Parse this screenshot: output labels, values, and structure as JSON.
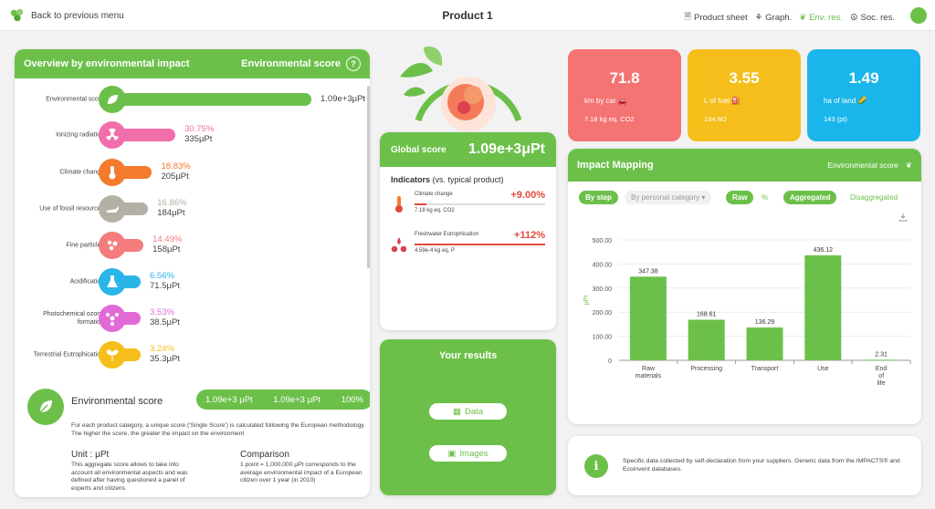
{
  "header": {
    "back_label": "Back to previous menu",
    "title": "Product 1",
    "nav": [
      {
        "label": "Product sheet",
        "icon": "document-icon",
        "active": false
      },
      {
        "label": "Graph.",
        "icon": "hierarchy-icon",
        "active": false
      },
      {
        "label": "Env. res.",
        "icon": "leaf-icon",
        "active": true
      },
      {
        "label": "Soc. res.",
        "icon": "peace-icon",
        "active": false
      }
    ]
  },
  "overview": {
    "title": "Overview by environmental impact",
    "score_label": "Environmental score",
    "help": "?",
    "rows": [
      {
        "label": "Environmental score",
        "pct": "",
        "value": "1.09e+3μPt",
        "color": "#6cc04a",
        "fraction": 1.0,
        "icon": "leaf-icon"
      },
      {
        "label": "Ionizing radiation",
        "pct": "30.75%",
        "value": "335μPt",
        "color": "#f06ea9",
        "fraction": 0.3075,
        "icon": "radiation-icon"
      },
      {
        "label": "Climate change",
        "pct": "18.83%",
        "value": "205μPt",
        "color": "#f47a2c",
        "fraction": 0.1883,
        "icon": "thermometer-icon"
      },
      {
        "label": "Use of fossil resources",
        "pct": "16.86%",
        "value": "184μPt",
        "color": "#b5b0a6",
        "fraction": 0.1686,
        "icon": "oil-lamp-icon"
      },
      {
        "label": "Fine particles",
        "pct": "14.49%",
        "value": "158μPt",
        "color": "#f47c7c",
        "fraction": 0.1449,
        "icon": "particles-icon"
      },
      {
        "label": "Acidification",
        "pct": "6.56%",
        "value": "71.5μPt",
        "color": "#29b5e8",
        "fraction": 0.0656,
        "icon": "acid-flask-icon"
      },
      {
        "label": "Photochemical ozone formation",
        "pct": "3.53%",
        "value": "38.5μPt",
        "color": "#e26ad6",
        "fraction": 0.0353,
        "icon": "molecule-icon"
      },
      {
        "label": "Terrestrial Eutrophication",
        "pct": "3.24%",
        "value": "35.3μPt",
        "color": "#f5be1b",
        "fraction": 0.0324,
        "icon": "sprout-icon"
      }
    ],
    "env_block": {
      "title": "Environmental score",
      "pill": [
        "1.09e+3 μPt",
        "1.09e+3 μPt",
        "100%"
      ],
      "description": "For each product category, a unique score ('Single Score') is calculated following the European methodology. The higher the score, the greater the impact on the environment",
      "unit_title": "Unit : μPt",
      "unit_text": "This aggregate score allows to take into account all environmental aspects and was defined after having questioned a panel of experts and citizens",
      "comparison_title": "Comparison",
      "comparison_text": "1 point = 1,000,000 μPt corresponds to the average environmental impact of a European citizen over 1 year (in 2010)"
    }
  },
  "global_score": {
    "label": "Global score",
    "value": "1.09e+3μPt",
    "indicators_title": "Indicators",
    "indicators_sub": "(vs. typical product)",
    "indicators": [
      {
        "name": "Climate change",
        "pct": "+9.00%",
        "sub": "7.18 kg eq. CO2",
        "icon": "thermometer-icon",
        "fill": 0.09
      },
      {
        "name": "Freshwater Eutrophication",
        "pct": "+112%",
        "sub": "4.59e-4 kg eq. P",
        "icon": "drops-icon",
        "fill": 1.0
      }
    ]
  },
  "results": {
    "title": "Your results",
    "data_label": "Data",
    "images_label": "Images"
  },
  "tiles": [
    {
      "value": "71.8",
      "unit": "km by car 🚗",
      "sub": "7.18 kg eq. CO2",
      "color": "#f47373"
    },
    {
      "value": "3.55",
      "unit": "L of fuel ⛽",
      "sub": "134 MJ",
      "color": "#f5be1b"
    },
    {
      "value": "1.49",
      "unit": "ha of land 🌽",
      "sub": "143 (pt)",
      "color": "#1ab5ea"
    }
  ],
  "impact_mapping": {
    "title": "Impact Mapping",
    "score_label": "Environmental score",
    "toggles": {
      "by_step": "By step",
      "by_category": "By personal category",
      "raw": "Raw",
      "percent": "%",
      "aggregated": "Aggregated",
      "disaggregated": "Disaggregated"
    }
  },
  "chart_data": {
    "type": "bar",
    "categories": [
      "Raw materials",
      "Processing",
      "Transport",
      "Use",
      "End of life"
    ],
    "values": [
      347.38,
      168.61,
      136.29,
      436.12,
      2.31
    ],
    "value_labels": [
      "347.38",
      "168.61",
      "136.29",
      "436.12",
      "2.31"
    ],
    "ylabel": "μPt",
    "ylim": [
      0,
      500
    ],
    "yticks": [
      "0",
      "100.00",
      "200.00",
      "300.00",
      "400.00",
      "500.00"
    ],
    "color": "#6cc04a",
    "grid": true
  },
  "info": {
    "text": "Specific data collected by self-declaration from your suppliers. Generic data from the IMPACTS® and Ecoinvent databases."
  },
  "colors": {
    "accent": "#6cc04a",
    "negative": "#e04a3a"
  }
}
